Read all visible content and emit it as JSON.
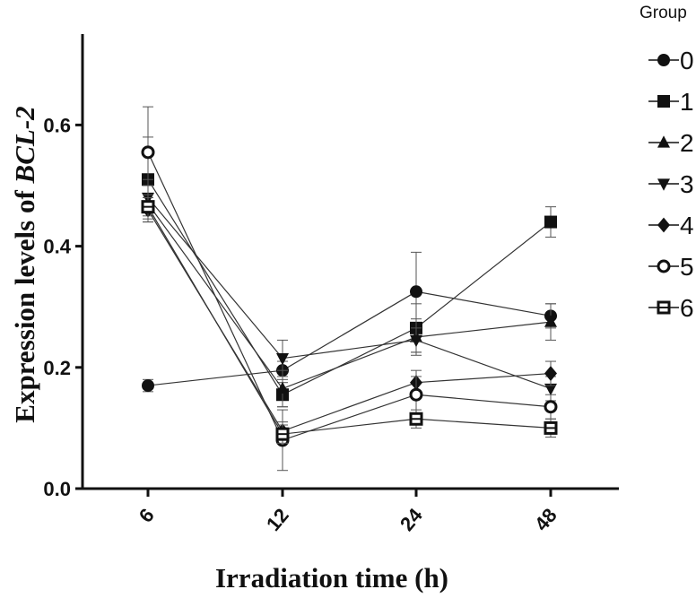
{
  "chart_data": {
    "type": "line",
    "x_categories": [
      "6",
      "12",
      "24",
      "48"
    ],
    "xlabel": "Irradiation time (h)",
    "ylabel_prefix": "Expression levels of ",
    "ylabel_gene": "BCL-2",
    "ylim": [
      0,
      0.75
    ],
    "yticks": [
      "0.0",
      "0.2",
      "0.4",
      "0.6"
    ],
    "legend_title": "Group",
    "legend_position": "right",
    "series": [
      {
        "name": "0",
        "marker": "circle",
        "values": [
          0.17,
          0.195,
          0.325,
          0.285
        ],
        "errors": [
          0.01,
          0.015,
          0.065,
          0.02
        ]
      },
      {
        "name": "1",
        "marker": "square",
        "values": [
          0.51,
          0.155,
          0.265,
          0.44
        ],
        "errors": [
          0.07,
          0.02,
          0.04,
          0.025
        ]
      },
      {
        "name": "2",
        "marker": "triangle-up",
        "values": [
          0.47,
          0.165,
          0.25,
          0.275
        ],
        "errors": [
          0.03,
          0.03,
          0.03,
          0.03
        ]
      },
      {
        "name": "3",
        "marker": "triangle-down",
        "values": [
          0.48,
          0.215,
          0.245,
          0.165
        ],
        "errors": [
          0.03,
          0.03,
          0.02,
          0.02
        ]
      },
      {
        "name": "4",
        "marker": "diamond",
        "values": [
          0.46,
          0.095,
          0.175,
          0.19
        ],
        "errors": [
          0.02,
          0.015,
          0.02,
          0.02
        ]
      },
      {
        "name": "5",
        "marker": "circle-open",
        "values": [
          0.555,
          0.08,
          0.155,
          0.135
        ],
        "errors": [
          0.075,
          0.05,
          0.03,
          0.02
        ]
      },
      {
        "name": "6",
        "marker": "square-open",
        "values": [
          0.465,
          0.09,
          0.115,
          0.1
        ],
        "errors": [
          0.02,
          0.015,
          0.015,
          0.015
        ]
      }
    ]
  }
}
